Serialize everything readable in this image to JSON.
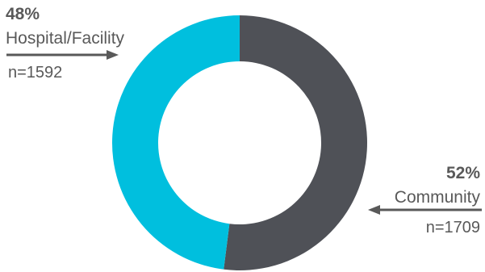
{
  "chart_data": {
    "type": "pie",
    "variant": "donut",
    "categories": [
      "Hospital/Facility",
      "Community"
    ],
    "values": [
      48,
      52
    ],
    "percent_labels": [
      "48%",
      "52%"
    ],
    "counts": [
      "n=1592",
      "n=1709"
    ],
    "colors": [
      "#00BFDE",
      "#4F5157"
    ],
    "title": "",
    "legend": "none"
  }
}
